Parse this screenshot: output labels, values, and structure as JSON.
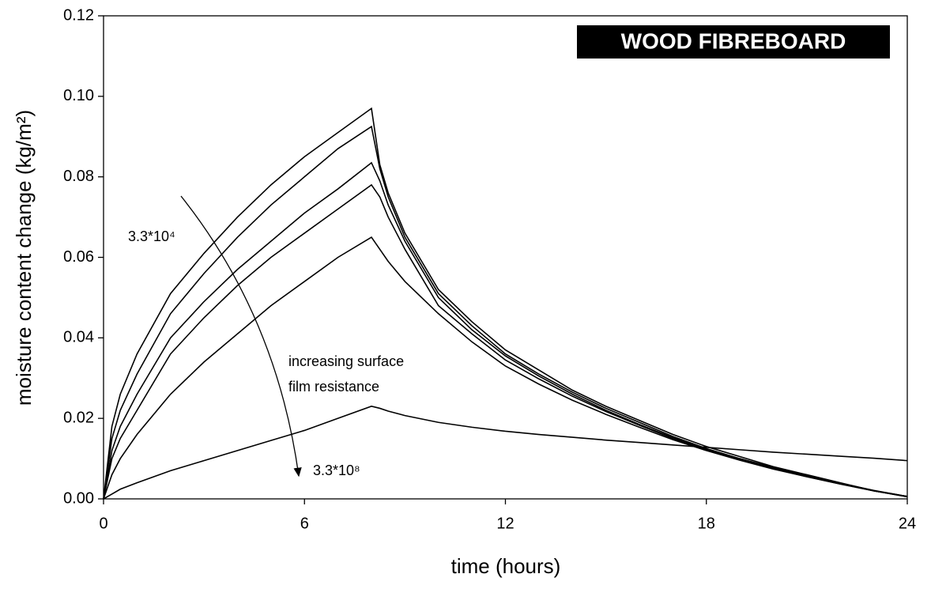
{
  "chart_data": {
    "type": "line",
    "xlabel": "time (hours)",
    "ylabel": "moisture content change (kg/m²)",
    "annotations": [
      "WOOD FIBREBOARD",
      "3.3*10⁴",
      "increasing surface",
      "film resistance",
      "3.3*10⁸"
    ],
    "x": [
      0,
      0.25,
      0.5,
      1,
      2,
      3,
      4,
      5,
      6,
      7,
      8,
      8.25,
      8.5,
      9,
      10,
      11,
      12,
      13,
      14,
      15,
      16,
      17,
      18,
      19,
      20,
      21,
      22,
      23,
      24
    ],
    "series": [
      {
        "color": "#000000",
        "values": [
          0,
          0.018,
          0.026,
          0.036,
          0.051,
          0.061,
          0.07,
          0.078,
          0.085,
          0.091,
          0.097,
          0.083,
          0.076,
          0.066,
          0.052,
          0.044,
          0.037,
          0.032,
          0.027,
          0.023,
          0.0195,
          0.016,
          0.013,
          0.0105,
          0.008,
          0.006,
          0.004,
          0.002,
          0.0005
        ]
      },
      {
        "color": "#000000",
        "values": [
          0,
          0.015,
          0.022,
          0.031,
          0.046,
          0.056,
          0.065,
          0.073,
          0.08,
          0.087,
          0.0925,
          0.082,
          0.075,
          0.065,
          0.051,
          0.043,
          0.036,
          0.031,
          0.0265,
          0.0225,
          0.019,
          0.0155,
          0.0125,
          0.01,
          0.0078,
          0.0058,
          0.0039,
          0.0021,
          0.0006
        ]
      },
      {
        "color": "#000000",
        "values": [
          0,
          0.012,
          0.018,
          0.026,
          0.04,
          0.049,
          0.057,
          0.064,
          0.071,
          0.077,
          0.0835,
          0.079,
          0.073,
          0.064,
          0.05,
          0.042,
          0.0355,
          0.0305,
          0.026,
          0.022,
          0.0185,
          0.0152,
          0.0123,
          0.0098,
          0.0076,
          0.0056,
          0.0038,
          0.002,
          0.0006
        ]
      },
      {
        "color": "#000000",
        "values": [
          0,
          0.01,
          0.015,
          0.022,
          0.036,
          0.045,
          0.053,
          0.06,
          0.066,
          0.072,
          0.078,
          0.075,
          0.07,
          0.062,
          0.048,
          0.041,
          0.0345,
          0.0298,
          0.0255,
          0.0217,
          0.0183,
          0.015,
          0.0122,
          0.0097,
          0.0075,
          0.0055,
          0.0037,
          0.002,
          0.0006
        ]
      },
      {
        "color": "#000000",
        "values": [
          0,
          0.006,
          0.01,
          0.016,
          0.026,
          0.034,
          0.041,
          0.048,
          0.054,
          0.06,
          0.065,
          0.062,
          0.059,
          0.054,
          0.046,
          0.039,
          0.033,
          0.0285,
          0.0245,
          0.021,
          0.0178,
          0.0147,
          0.012,
          0.0096,
          0.0074,
          0.0055,
          0.0037,
          0.002,
          0.0006
        ]
      },
      {
        "color": "#000000",
        "values": [
          0,
          0.0012,
          0.0024,
          0.004,
          0.007,
          0.0095,
          0.012,
          0.0145,
          0.017,
          0.02,
          0.023,
          0.0225,
          0.0218,
          0.0207,
          0.019,
          0.0178,
          0.0168,
          0.016,
          0.0153,
          0.0146,
          0.014,
          0.0134,
          0.0128,
          0.0122,
          0.0116,
          0.0111,
          0.0106,
          0.0101,
          0.0095
        ]
      }
    ],
    "xlim": [
      0,
      24
    ],
    "xticks": [
      0,
      6,
      12,
      18,
      24
    ],
    "ylim": [
      0,
      0.12
    ],
    "yticks": [
      {
        "value": 0,
        "label": "0.00"
      },
      0.02,
      0.04,
      0.06,
      0.08,
      {
        "value": 0.1,
        "label": "0.10"
      },
      0.12
    ],
    "grid": false
  }
}
